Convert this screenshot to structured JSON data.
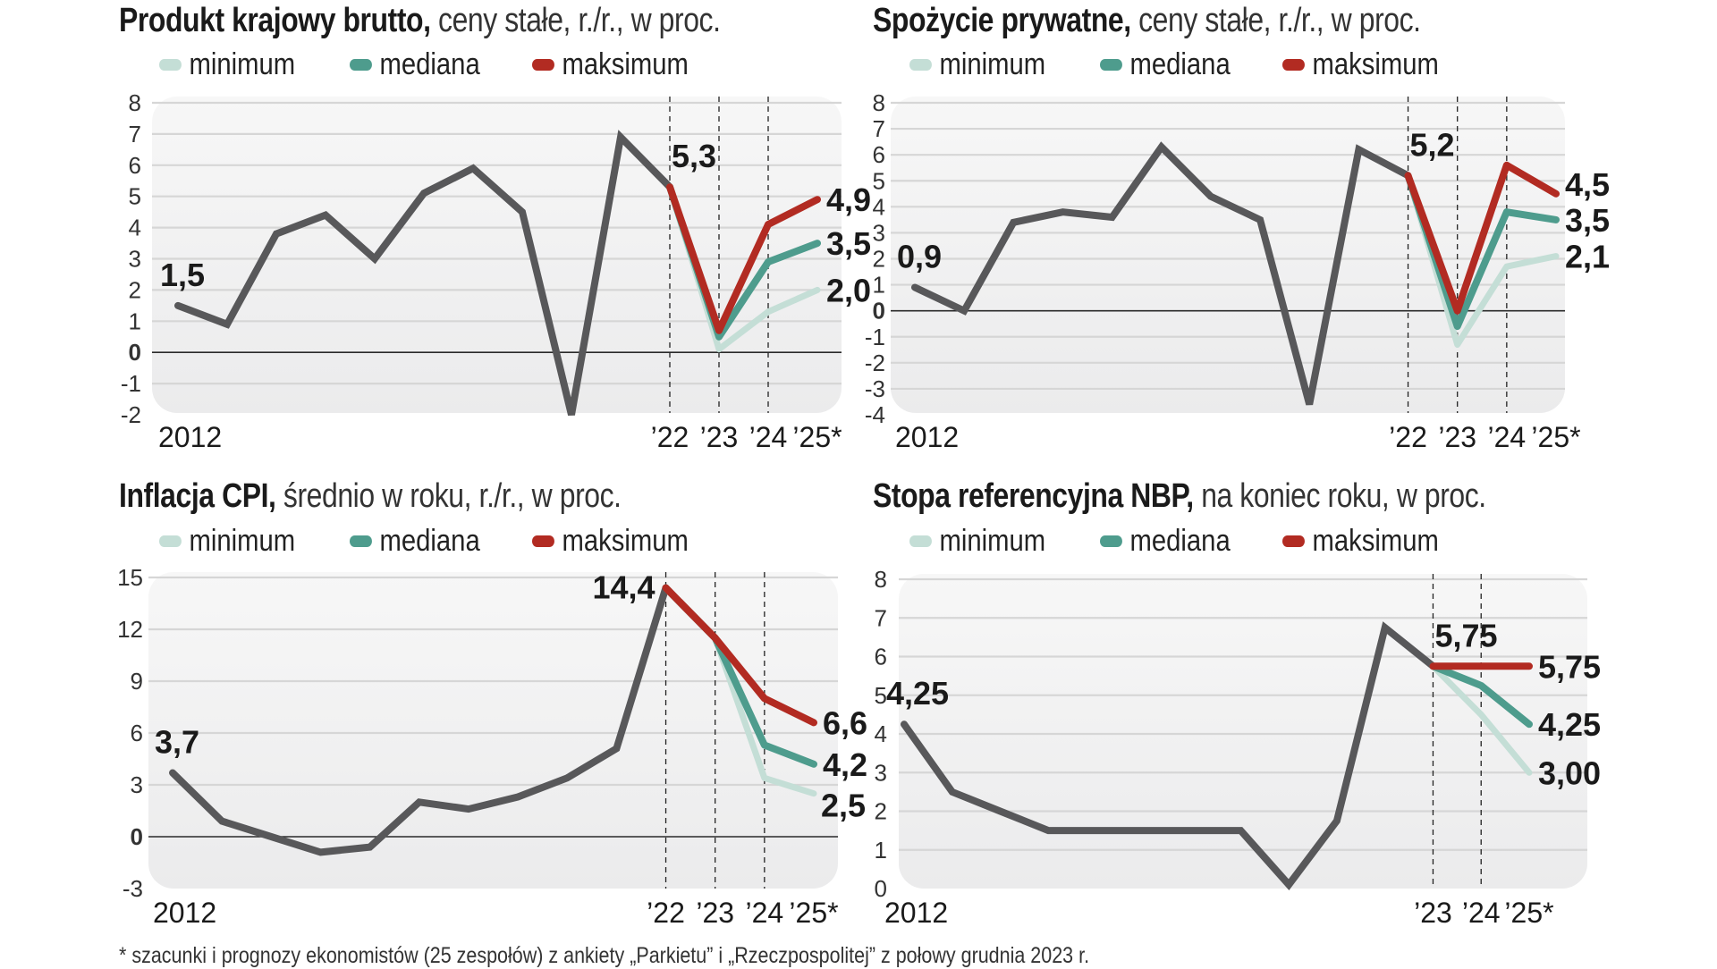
{
  "legend": [
    {
      "label": "minimum",
      "color": "#c4ded6"
    },
    {
      "label": "mediana",
      "color": "#4e9c8d"
    },
    {
      "label": "maksimum",
      "color": "#b22b22"
    }
  ],
  "colors": {
    "history": "#58585a",
    "min": "#c4ded6",
    "median": "#4e9c8d",
    "max": "#b22b22"
  },
  "footer": "* szacunki i prognozy ekonomistów (25 zespołów) z ankiety „Parkietu” i „Rzeczpospolitej” z połowy grudnia 2023 r.",
  "chart_data": [
    {
      "type": "line",
      "title_bold": "Produkt krajowy brutto,",
      "title_rest": " ceny stałe, r./r., w proc.",
      "ylim": [
        -2,
        8
      ],
      "y_ticks": [
        "8",
        "7",
        "6",
        "5",
        "4",
        "3",
        "2",
        "1",
        "0",
        "-1",
        "-2"
      ],
      "y_tick_values": [
        8,
        7,
        6,
        5,
        4,
        3,
        2,
        1,
        0,
        -1,
        -2
      ],
      "zero_line": true,
      "x_range": [
        2012,
        2025
      ],
      "x_labels": [
        {
          "text": "2012",
          "year": 2012
        },
        {
          "text": "’22",
          "year": 2022
        },
        {
          "text": "’23",
          "year": 2023
        },
        {
          "text": "’24",
          "year": 2024
        },
        {
          "text": "’25*",
          "year": 2025
        }
      ],
      "dashed_years": [
        2022,
        2023,
        2024
      ],
      "history": {
        "years": [
          2012,
          2013,
          2014,
          2015,
          2016,
          2017,
          2018,
          2019,
          2020,
          2021,
          2022
        ],
        "values": [
          1.5,
          0.9,
          3.8,
          4.4,
          3.0,
          5.1,
          5.9,
          4.5,
          -2.0,
          6.9,
          5.3
        ]
      },
      "forecast": {
        "years": [
          2022,
          2023,
          2024,
          2025
        ],
        "min": [
          5.3,
          0.1,
          1.3,
          2.0
        ],
        "median": [
          5.3,
          0.5,
          2.9,
          3.5
        ],
        "max": [
          5.3,
          0.7,
          4.1,
          4.9
        ]
      },
      "labels": [
        {
          "text": "1,5",
          "series": "history",
          "year": 2012,
          "pos": "above"
        },
        {
          "text": "5,3",
          "series": "history",
          "year": 2022,
          "pos": "above-right"
        },
        {
          "text": "4,9",
          "series": "max",
          "year": 2025,
          "pos": "right"
        },
        {
          "text": "3,5",
          "series": "median",
          "year": 2025,
          "pos": "right"
        },
        {
          "text": "2,0",
          "series": "min",
          "year": 2025,
          "pos": "right"
        }
      ]
    },
    {
      "type": "line",
      "title_bold": "Spożycie prywatne,",
      "title_rest": " ceny stałe, r./r., w proc.",
      "ylim": [
        -4,
        8
      ],
      "y_ticks": [
        "8",
        "7",
        "6",
        "5",
        "4",
        "3",
        "2",
        "1",
        "0",
        "-1",
        "-2",
        "-3",
        "-4"
      ],
      "y_tick_values": [
        8,
        7,
        6,
        5,
        4,
        3,
        2,
        1,
        0,
        -1,
        -2,
        -3,
        -4
      ],
      "zero_line": true,
      "x_range": [
        2012,
        2025
      ],
      "x_labels": [
        {
          "text": "2012",
          "year": 2012
        },
        {
          "text": "’22",
          "year": 2022
        },
        {
          "text": "’23",
          "year": 2023
        },
        {
          "text": "’24",
          "year": 2024
        },
        {
          "text": "’25*",
          "year": 2025
        }
      ],
      "dashed_years": [
        2022,
        2023,
        2024
      ],
      "history": {
        "years": [
          2012,
          2013,
          2014,
          2015,
          2016,
          2017,
          2018,
          2019,
          2020,
          2021,
          2022
        ],
        "values": [
          0.9,
          0.0,
          3.4,
          3.8,
          3.6,
          6.3,
          4.4,
          3.5,
          -3.6,
          6.2,
          5.2
        ]
      },
      "forecast": {
        "years": [
          2022,
          2023,
          2024,
          2025
        ],
        "min": [
          5.2,
          -1.3,
          1.7,
          2.1
        ],
        "median": [
          5.2,
          -0.6,
          3.8,
          3.5
        ],
        "max": [
          5.2,
          0.0,
          5.6,
          4.5
        ]
      },
      "labels": [
        {
          "text": "0,9",
          "series": "history",
          "year": 2012,
          "pos": "above"
        },
        {
          "text": "5,2",
          "series": "history",
          "year": 2022,
          "pos": "above-right"
        },
        {
          "text": "4,5",
          "series": "max",
          "year": 2025,
          "pos": "right-up"
        },
        {
          "text": "3,5",
          "series": "median",
          "year": 2025,
          "pos": "right"
        },
        {
          "text": "2,1",
          "series": "min",
          "year": 2025,
          "pos": "right"
        }
      ]
    },
    {
      "type": "line",
      "title_bold": "Inflacja CPI,",
      "title_rest": " średnio w roku, r./r., w proc.",
      "ylim": [
        -3,
        15
      ],
      "y_ticks": [
        "15",
        "12",
        "9",
        "6",
        "3",
        "0",
        "-3"
      ],
      "y_tick_values": [
        15,
        12,
        9,
        6,
        3,
        0,
        -3
      ],
      "zero_line": true,
      "x_range": [
        2012,
        2025
      ],
      "x_labels": [
        {
          "text": "2012",
          "year": 2012
        },
        {
          "text": "’22",
          "year": 2022
        },
        {
          "text": "’23",
          "year": 2023
        },
        {
          "text": "’24",
          "year": 2024
        },
        {
          "text": "’25*",
          "year": 2025
        }
      ],
      "dashed_years": [
        2022,
        2023,
        2024
      ],
      "history": {
        "years": [
          2012,
          2013,
          2014,
          2015,
          2016,
          2017,
          2018,
          2019,
          2020,
          2021,
          2022
        ],
        "values": [
          3.7,
          0.9,
          0.0,
          -0.9,
          -0.6,
          2.0,
          1.6,
          2.3,
          3.4,
          5.1,
          14.4
        ]
      },
      "forecast": {
        "years": [
          2022,
          2023,
          2024,
          2025
        ],
        "min": [
          14.4,
          11.5,
          3.4,
          2.5
        ],
        "median": [
          14.4,
          11.5,
          5.3,
          4.2
        ],
        "max": [
          14.4,
          11.5,
          8.0,
          6.6
        ]
      },
      "labels": [
        {
          "text": "3,7",
          "series": "history",
          "year": 2012,
          "pos": "above"
        },
        {
          "text": "14,4",
          "series": "history",
          "year": 2022,
          "pos": "left"
        },
        {
          "text": "6,6",
          "series": "max",
          "year": 2025,
          "pos": "right"
        },
        {
          "text": "4,2",
          "series": "median",
          "year": 2025,
          "pos": "right"
        },
        {
          "text": "2,5",
          "series": "min",
          "year": 2025,
          "pos": "right-down"
        }
      ]
    },
    {
      "type": "line",
      "title_bold": "Stopa referencyjna NBP,",
      "title_rest": " na koniec roku, w proc.",
      "ylim": [
        0,
        8
      ],
      "y_ticks": [
        "8",
        "7",
        "6",
        "5",
        "4",
        "3",
        "2",
        "1",
        "0"
      ],
      "y_tick_values": [
        8,
        7,
        6,
        5,
        4,
        3,
        2,
        1,
        0
      ],
      "zero_line": false,
      "x_range": [
        2012,
        2025
      ],
      "x_labels": [
        {
          "text": "2012",
          "year": 2012
        },
        {
          "text": "’23",
          "year": 2023
        },
        {
          "text": "’24",
          "year": 2024
        },
        {
          "text": "’25*",
          "year": 2025
        }
      ],
      "dashed_years": [
        2023,
        2024
      ],
      "history": {
        "years": [
          2012,
          2013,
          2014,
          2015,
          2016,
          2017,
          2018,
          2019,
          2020,
          2021,
          2022,
          2023
        ],
        "values": [
          4.25,
          2.5,
          2.0,
          1.5,
          1.5,
          1.5,
          1.5,
          1.5,
          0.1,
          1.75,
          6.75,
          5.75
        ]
      },
      "forecast": {
        "years": [
          2023,
          2024,
          2025
        ],
        "min": [
          5.75,
          4.5,
          3.0
        ],
        "median": [
          5.75,
          5.25,
          4.25
        ],
        "max": [
          5.75,
          5.75,
          5.75
        ]
      },
      "labels": [
        {
          "text": "4,25",
          "series": "history",
          "year": 2012,
          "pos": "above"
        },
        {
          "text": "5,75",
          "series": "history",
          "year": 2023,
          "pos": "above-right"
        },
        {
          "text": "5,75",
          "series": "max",
          "year": 2025,
          "pos": "right"
        },
        {
          "text": "4,25",
          "series": "median",
          "year": 2025,
          "pos": "right"
        },
        {
          "text": "3,00",
          "series": "min",
          "year": 2025,
          "pos": "right"
        }
      ]
    }
  ]
}
